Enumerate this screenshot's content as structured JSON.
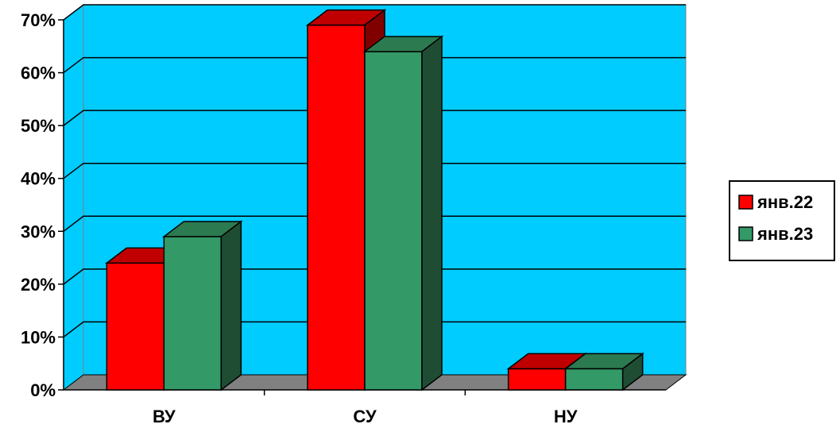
{
  "chart_data": {
    "type": "bar",
    "categories": [
      "ВУ",
      "СУ",
      "НУ"
    ],
    "series": [
      {
        "name": "янв.22",
        "values": [
          24,
          69,
          4
        ],
        "color": "#ff0000",
        "top_color": "#c00000",
        "side_color": "#800000"
      },
      {
        "name": "янв.23",
        "values": [
          29,
          64,
          4
        ],
        "color": "#339966",
        "top_color": "#2b7a50",
        "side_color": "#1e4d33"
      }
    ],
    "ylim": [
      0,
      70
    ],
    "yticks": [
      0,
      10,
      20,
      30,
      40,
      50,
      60,
      70
    ],
    "ytick_labels": [
      "0%",
      "10%",
      "20%",
      "30%",
      "40%",
      "50%",
      "60%",
      "70%"
    ],
    "grid": true,
    "legend": "right",
    "colors": {
      "plot_background": "#00ccff",
      "floor": "#808080",
      "grid": "#000000"
    }
  }
}
